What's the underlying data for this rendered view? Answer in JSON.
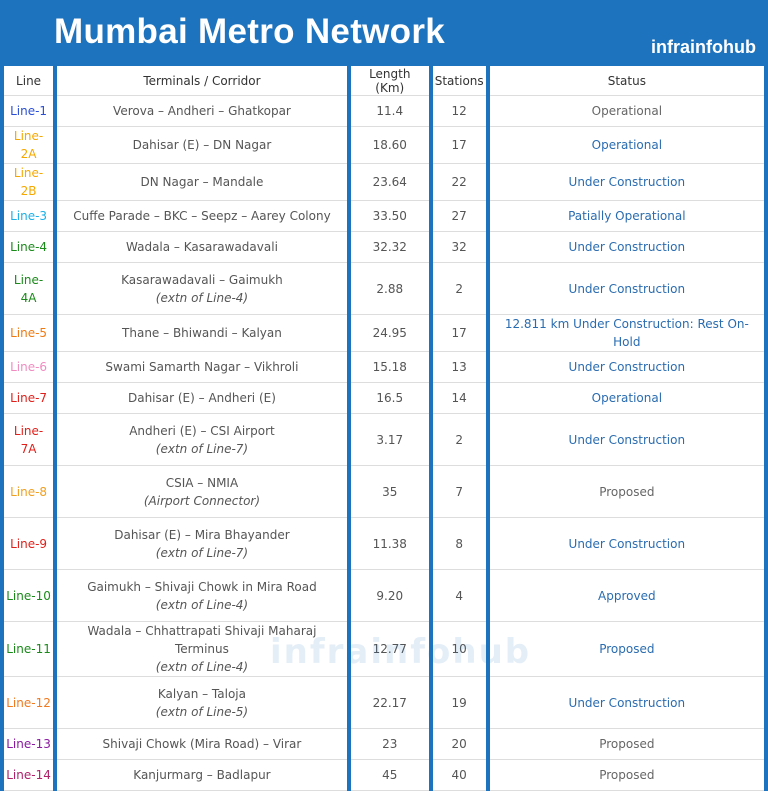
{
  "header": {
    "title": "Mumbai Metro Network",
    "brand": "infrainfohub"
  },
  "watermark": "infrainfohub",
  "table": {
    "columns": [
      "Line",
      "Terminals / Corridor",
      "Length (Km)",
      "Stations",
      "Status"
    ],
    "rows": [
      {
        "line": "Line-1",
        "line_color": "#2a4fd6",
        "terminals": "Verova – Andheri – Ghatkopar",
        "length": "11.4",
        "stations": "12",
        "status": "Operational",
        "status_color": "#666666"
      },
      {
        "line": "Line-2A",
        "line_color": "#f5a800",
        "terminals": "Dahisar (E) – DN Nagar",
        "length": "18.60",
        "stations": "17",
        "status": "Operational",
        "status_color": "#2a6cb0"
      },
      {
        "line": "Line-2B",
        "line_color": "#f5a800",
        "terminals": "DN Nagar – Mandale",
        "length": "23.64",
        "stations": "22",
        "status": "Under Construction",
        "status_color": "#2a6cb0"
      },
      {
        "line": "Line-3",
        "line_color": "#1ab0e8",
        "terminals": "Cuffe Parade – BKC – Seepz – Aarey Colony",
        "length": "33.50",
        "stations": "27",
        "status": "Patially Operational",
        "status_color": "#2a6cb0"
      },
      {
        "line": "Line-4",
        "line_color": "#1a8a1a",
        "terminals": "Wadala – Kasarawadavali",
        "length": "32.32",
        "stations": "32",
        "status": "Under Construction",
        "status_color": "#2a6cb0"
      },
      {
        "line": "Line-4A",
        "line_color": "#1a8a1a",
        "terminals": "Kasarawadavali – Gaimukh",
        "note": "(extn of Line-4)",
        "length": "2.88",
        "stations": "2",
        "status": "Under Construction",
        "status_color": "#2a6cb0"
      },
      {
        "line": "Line-5",
        "line_color": "#f07a10",
        "terminals": "Thane – Bhiwandi – Kalyan",
        "length": "24.95",
        "stations": "17",
        "status": "12.811 km Under Construction: Rest On-Hold",
        "status_color": "#2a6cb0"
      },
      {
        "line": "Line-6",
        "line_color": "#f08cc0",
        "terminals": "Swami Samarth Nagar – Vikhroli",
        "length": "15.18",
        "stations": "13",
        "status": "Under Construction",
        "status_color": "#2a6cb0"
      },
      {
        "line": "Line-7",
        "line_color": "#e0201a",
        "terminals": "Dahisar (E) – Andheri (E)",
        "length": "16.5",
        "stations": "14",
        "status": "Operational",
        "status_color": "#2a6cb0"
      },
      {
        "line": "Line-7A",
        "line_color": "#e0201a",
        "terminals": "Andheri (E) – CSI Airport",
        "note": "(extn of Line-7)",
        "length": "3.17",
        "stations": "2",
        "status": "Under Construction",
        "status_color": "#2a6cb0"
      },
      {
        "line": "Line-8",
        "line_color": "#f0a020",
        "terminals": "CSIA – NMIA",
        "note": "(Airport Connector)",
        "length": "35",
        "stations": "7",
        "status": "Proposed",
        "status_color": "#666666"
      },
      {
        "line": "Line-9",
        "line_color": "#e0201a",
        "terminals": "Dahisar (E) – Mira Bhayander",
        "note": "(extn of Line-7)",
        "length": "11.38",
        "stations": "8",
        "status": "Under Construction",
        "status_color": "#2a6cb0"
      },
      {
        "line": "Line-10",
        "line_color": "#1a8a1a",
        "terminals": "Gaimukh – Shivaji Chowk in Mira Road",
        "note": "(extn of Line-4)",
        "length": "9.20",
        "stations": "4",
        "status": "Approved",
        "status_color": "#2a6cb0"
      },
      {
        "line": "Line-11",
        "line_color": "#1a8a1a",
        "terminals": "Wadala – Chhattrapati Shivaji Maharaj Terminus",
        "note": "(extn of Line-4)",
        "length": "12.77",
        "stations": "10",
        "status": "Proposed",
        "status_color": "#2a6cb0"
      },
      {
        "line": "Line-12",
        "line_color": "#f07a20",
        "terminals": "Kalyan – Taloja",
        "note": "(extn of Line-5)",
        "length": "22.17",
        "stations": "19",
        "status": "Under Construction",
        "status_color": "#2a6cb0"
      },
      {
        "line": "Line-13",
        "line_color": "#8a1aa0",
        "terminals": "Shivaji Chowk (Mira Road) – Virar",
        "length": "23",
        "stations": "20",
        "status": "Proposed",
        "status_color": "#666666"
      },
      {
        "line": "Line-14",
        "line_color": "#b0206a",
        "terminals": "Kanjurmarg – Badlapur",
        "length": "45",
        "stations": "40",
        "status": "Proposed",
        "status_color": "#666666"
      }
    ]
  }
}
